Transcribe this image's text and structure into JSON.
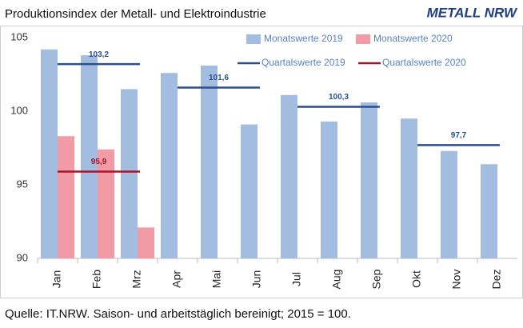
{
  "chart_data": {
    "type": "bar",
    "title": "Produktionsindex der Metall- und Elektroindustrie",
    "logo": "METALL NRW",
    "source": "Quelle: IT.NRW. Saison- und arbeitstäglich bereinigt; 2015  =  100.",
    "categories": [
      "Jan",
      "Feb",
      "Mrz",
      "Apr",
      "Mai",
      "Jun",
      "Jul",
      "Aug",
      "Sep",
      "Okt",
      "Nov",
      "Dez"
    ],
    "series": [
      {
        "name": "Monatswerte 2019",
        "color": "#a3bde0",
        "values": [
          104.2,
          103.8,
          101.5,
          102.6,
          103.1,
          99.1,
          101.1,
          99.3,
          100.6,
          99.5,
          97.3,
          96.4
        ]
      },
      {
        "name": "Monatswerte 2020",
        "color": "#f09ba6",
        "values": [
          98.3,
          97.4,
          92.1,
          null,
          null,
          null,
          null,
          null,
          null,
          null,
          null,
          null
        ]
      }
    ],
    "quarter_series": [
      {
        "name": "Quartalswerte 2019",
        "color": "#2b4f8e",
        "values": [
          103.2,
          101.6,
          100.3,
          97.7
        ],
        "value_labels": [
          "103,2",
          "101,6",
          "100,3",
          "97,7"
        ]
      },
      {
        "name": "Quartalswerte 2020",
        "color": "#a4142e",
        "values": [
          95.9
        ],
        "value_labels": [
          "95,9"
        ]
      }
    ],
    "ylim": [
      90,
      105
    ],
    "yticks": [
      90,
      95,
      100,
      105
    ]
  }
}
